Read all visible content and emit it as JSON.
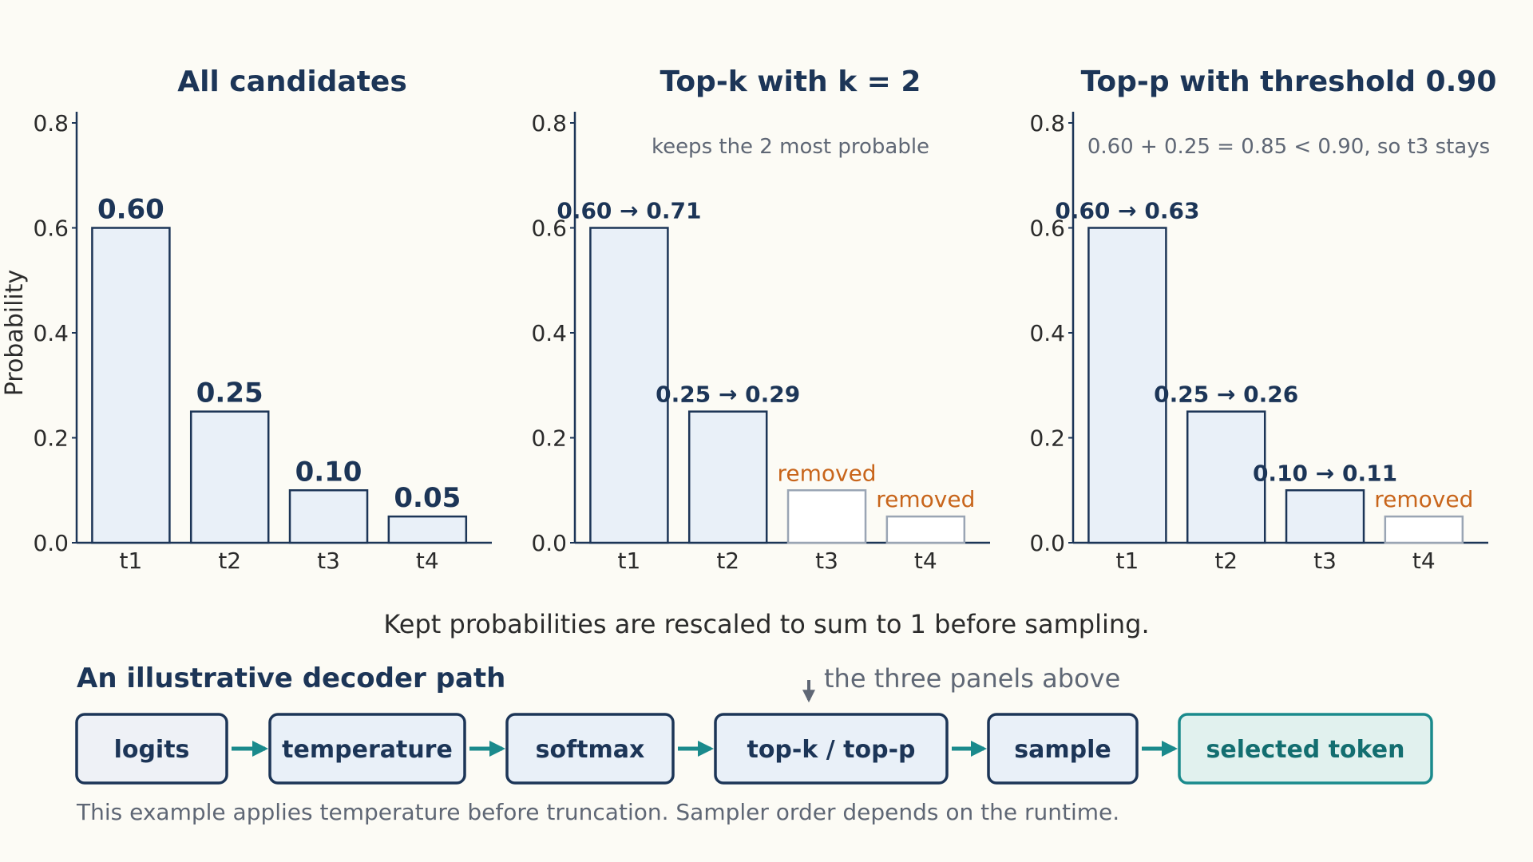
{
  "chart_data": [
    {
      "type": "bar",
      "title": "All candidates",
      "ylabel": "Probability",
      "categories": [
        "t1",
        "t2",
        "t3",
        "t4"
      ],
      "values": [
        0.6,
        0.25,
        0.1,
        0.05
      ],
      "kept": [
        true,
        true,
        true,
        true
      ],
      "bar_labels": [
        "0.60",
        "0.25",
        "0.10",
        "0.05"
      ],
      "ylim": [
        0,
        0.8
      ],
      "yticks": [
        "0.0",
        "0.2",
        "0.4",
        "0.6",
        "0.8"
      ],
      "note": ""
    },
    {
      "type": "bar",
      "title": "Top-k with k = 2",
      "ylabel": "",
      "categories": [
        "t1",
        "t2",
        "t3",
        "t4"
      ],
      "values": [
        0.6,
        0.25,
        0.1,
        0.05
      ],
      "kept": [
        true,
        true,
        false,
        false
      ],
      "bar_labels": [
        "0.60 → 0.71",
        "0.25 → 0.29",
        "removed",
        "removed"
      ],
      "ylim": [
        0,
        0.8
      ],
      "yticks": [
        "0.0",
        "0.2",
        "0.4",
        "0.6",
        "0.8"
      ],
      "note": "keeps the 2 most probable"
    },
    {
      "type": "bar",
      "title": "Top-p with threshold 0.90",
      "ylabel": "",
      "categories": [
        "t1",
        "t2",
        "t3",
        "t4"
      ],
      "values": [
        0.6,
        0.25,
        0.1,
        0.05
      ],
      "kept": [
        true,
        true,
        true,
        false
      ],
      "bar_labels": [
        "0.60 → 0.63",
        "0.25 → 0.26",
        "0.10 → 0.11",
        "removed"
      ],
      "ylim": [
        0,
        0.8
      ],
      "yticks": [
        "0.0",
        "0.2",
        "0.4",
        "0.6",
        "0.8"
      ],
      "note": "0.60 + 0.25 = 0.85 < 0.90, so t3 stays"
    }
  ],
  "caption": "Kept probabilities are rescaled to sum to 1 before sampling.",
  "pipeline": {
    "title": "An illustrative decoder path",
    "above_note": "the three panels above",
    "steps": [
      "logits",
      "temperature",
      "softmax",
      "top-k / top-p",
      "sample",
      "selected token"
    ],
    "footnote": "This example applies temperature before truncation. Sampler order depends on the runtime."
  },
  "colors": {
    "background": "#fcfbf5",
    "bar_fill": "#e9f0f8",
    "bar_stroke": "#1c3557",
    "removed_stroke": "#9aa5b4",
    "removed_text": "#c8651b",
    "accent_teal": "#1a8a8c",
    "final_fill": "#e1f1ee",
    "first_step_fill": "#eef1f6"
  }
}
